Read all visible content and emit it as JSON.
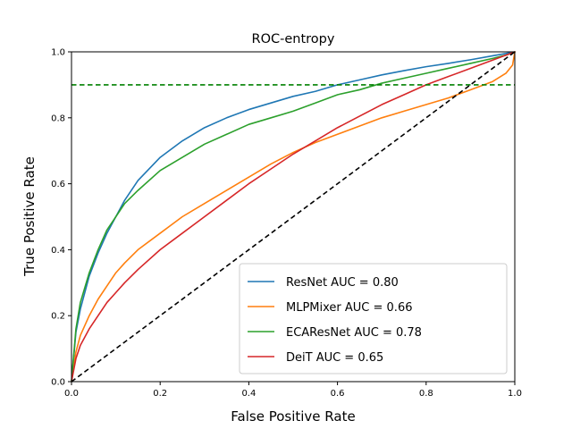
{
  "chart_data": {
    "type": "line",
    "title": "ROC-entropy",
    "xlabel": "False Positive Rate",
    "ylabel": "True Positive Rate",
    "xlim": [
      0,
      1
    ],
    "ylim": [
      0,
      1
    ],
    "xticks": [
      "0.0",
      "0.2",
      "0.4",
      "0.6",
      "0.8",
      "1.0"
    ],
    "yticks": [
      "0.0",
      "0.2",
      "0.4",
      "0.6",
      "0.8",
      "1.0"
    ],
    "grid": false,
    "legend_position": "lower-right",
    "reference_lines": [
      {
        "kind": "horizontal",
        "y": 0.9,
        "style": "dashed",
        "color": "#008000"
      },
      {
        "kind": "diagonal",
        "from": [
          0,
          0
        ],
        "to": [
          1,
          1
        ],
        "style": "dashed",
        "color": "#000000"
      }
    ],
    "series": [
      {
        "name": "ResNet AUC = 0.80",
        "color": "#1f77b4",
        "x": [
          0,
          0.01,
          0.02,
          0.04,
          0.06,
          0.08,
          0.1,
          0.12,
          0.15,
          0.2,
          0.25,
          0.3,
          0.35,
          0.4,
          0.45,
          0.5,
          0.55,
          0.6,
          0.65,
          0.7,
          0.75,
          0.8,
          0.85,
          0.9,
          0.95,
          0.98,
          1.0
        ],
        "y": [
          0,
          0.15,
          0.22,
          0.32,
          0.39,
          0.45,
          0.5,
          0.55,
          0.61,
          0.68,
          0.73,
          0.77,
          0.8,
          0.825,
          0.845,
          0.865,
          0.88,
          0.9,
          0.915,
          0.93,
          0.943,
          0.955,
          0.965,
          0.976,
          0.988,
          0.995,
          1.0
        ]
      },
      {
        "name": "MLPMixer AUC = 0.66",
        "color": "#ff7f0e",
        "x": [
          0,
          0.01,
          0.02,
          0.04,
          0.06,
          0.08,
          0.1,
          0.12,
          0.15,
          0.2,
          0.25,
          0.3,
          0.35,
          0.4,
          0.45,
          0.5,
          0.55,
          0.6,
          0.65,
          0.7,
          0.75,
          0.8,
          0.85,
          0.9,
          0.95,
          0.98,
          0.995,
          1.0
        ],
        "y": [
          0,
          0.09,
          0.14,
          0.2,
          0.25,
          0.29,
          0.33,
          0.36,
          0.4,
          0.45,
          0.5,
          0.54,
          0.58,
          0.62,
          0.66,
          0.695,
          0.725,
          0.75,
          0.775,
          0.8,
          0.82,
          0.84,
          0.86,
          0.885,
          0.91,
          0.935,
          0.96,
          1.0
        ]
      },
      {
        "name": "ECAResNet AUC = 0.78",
        "color": "#2ca02c",
        "x": [
          0,
          0.01,
          0.02,
          0.04,
          0.06,
          0.08,
          0.1,
          0.12,
          0.15,
          0.2,
          0.25,
          0.3,
          0.35,
          0.4,
          0.45,
          0.5,
          0.55,
          0.6,
          0.65,
          0.7,
          0.75,
          0.8,
          0.85,
          0.9,
          0.95,
          0.98,
          1.0
        ],
        "y": [
          0,
          0.16,
          0.24,
          0.33,
          0.4,
          0.46,
          0.5,
          0.54,
          0.58,
          0.64,
          0.68,
          0.72,
          0.75,
          0.78,
          0.8,
          0.82,
          0.845,
          0.87,
          0.885,
          0.905,
          0.92,
          0.935,
          0.95,
          0.965,
          0.98,
          0.99,
          1.0
        ]
      },
      {
        "name": "DeiT AUC = 0.65",
        "color": "#d62728",
        "x": [
          0,
          0.01,
          0.02,
          0.04,
          0.06,
          0.08,
          0.1,
          0.12,
          0.15,
          0.2,
          0.25,
          0.3,
          0.35,
          0.4,
          0.45,
          0.5,
          0.55,
          0.6,
          0.65,
          0.7,
          0.75,
          0.8,
          0.85,
          0.9,
          0.95,
          1.0
        ],
        "y": [
          0,
          0.07,
          0.11,
          0.16,
          0.2,
          0.24,
          0.27,
          0.3,
          0.34,
          0.4,
          0.45,
          0.5,
          0.55,
          0.6,
          0.645,
          0.69,
          0.73,
          0.77,
          0.805,
          0.84,
          0.87,
          0.9,
          0.925,
          0.95,
          0.975,
          1.0
        ]
      }
    ]
  }
}
